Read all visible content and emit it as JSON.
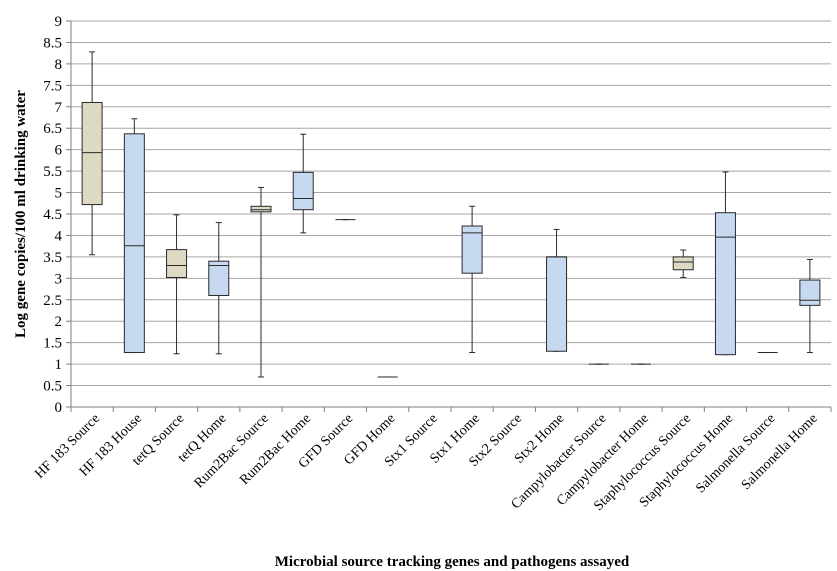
{
  "chart_data": {
    "type": "boxplot",
    "xlabel": "Microbial source tracking genes and pathogens assayed",
    "ylabel": "Log gene copies/100 ml drinking water",
    "ylim": [
      0,
      9
    ],
    "yticks": [
      "0",
      "0.5",
      "1",
      "1.5",
      "2",
      "2.5",
      "3",
      "3.5",
      "4",
      "4.5",
      "5",
      "5.5",
      "6",
      "6.5",
      "7",
      "7.5",
      "8",
      "8.5",
      "9"
    ],
    "grid": true,
    "colors": {
      "source": "#ddd9c3",
      "home": "#c6d9f1",
      "stroke": "#2a2a2a",
      "grid": "#a6a6a6"
    },
    "categories": [
      "HF 183 Source",
      "HF 183 House",
      "tetQ Source",
      "tetQ Home",
      "Rum2Bac Source",
      "Rum2Bac Home",
      "GFD Source",
      "GFD Home",
      "Stx1 Source",
      "Stx1 Home",
      "Stx2 Source",
      "Stx2 Home",
      "Campylobacter Source",
      "Campylobacter Home",
      "Staphylococcus Source",
      "Staphylococcus Home",
      "Salmonella Source",
      "Salmonella Home"
    ],
    "series": [
      {
        "group": "source",
        "min": 3.55,
        "q1": 4.72,
        "median": 5.93,
        "q3": 7.1,
        "max": 8.28
      },
      {
        "group": "home",
        "min": 1.27,
        "q1": 1.27,
        "median": 3.76,
        "q3": 6.37,
        "max": 6.72
      },
      {
        "group": "source",
        "min": 1.24,
        "q1": 3.02,
        "median": 3.3,
        "q3": 3.67,
        "max": 4.48
      },
      {
        "group": "home",
        "min": 1.24,
        "q1": 2.6,
        "median": 3.3,
        "q3": 3.4,
        "max": 4.3
      },
      {
        "group": "source",
        "min": 0.7,
        "q1": 4.55,
        "median": 4.6,
        "q3": 4.68,
        "max": 5.12
      },
      {
        "group": "home",
        "min": 4.06,
        "q1": 4.6,
        "median": 4.86,
        "q3": 5.47,
        "max": 6.36
      },
      {
        "group": "source",
        "min": 4.37,
        "q1": 4.37,
        "median": 4.37,
        "q3": 4.37,
        "max": 4.37
      },
      {
        "group": "home",
        "min": 0.7,
        "q1": 0.7,
        "median": 0.7,
        "q3": 0.7,
        "max": 0.7
      },
      null,
      {
        "group": "home",
        "min": 1.27,
        "q1": 3.12,
        "median": 4.06,
        "q3": 4.22,
        "max": 4.68
      },
      null,
      {
        "group": "home",
        "min": 1.3,
        "q1": 1.3,
        "median": 3.5,
        "q3": 3.5,
        "max": 4.14
      },
      {
        "group": "source",
        "min": 1.0,
        "q1": 1.0,
        "median": 1.0,
        "q3": 1.0,
        "max": 1.0
      },
      {
        "group": "home",
        "min": 1.0,
        "q1": 1.0,
        "median": 1.0,
        "q3": 1.0,
        "max": 1.0
      },
      {
        "group": "source",
        "min": 3.02,
        "q1": 3.2,
        "median": 3.38,
        "q3": 3.5,
        "max": 3.66
      },
      {
        "group": "home",
        "min": 1.22,
        "q1": 1.22,
        "median": 3.96,
        "q3": 4.53,
        "max": 5.48
      },
      {
        "group": "source",
        "min": 1.27,
        "q1": 1.27,
        "median": 1.27,
        "q3": 1.27,
        "max": 1.27
      },
      {
        "group": "home",
        "min": 1.27,
        "q1": 2.37,
        "median": 2.49,
        "q3": 2.96,
        "max": 3.44
      }
    ]
  }
}
